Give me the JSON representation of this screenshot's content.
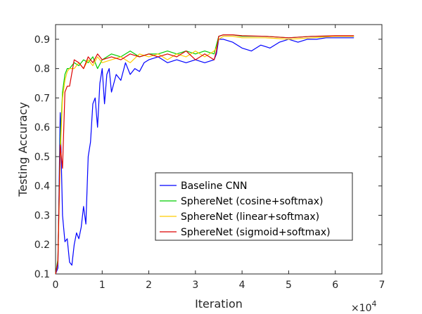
{
  "chart_data": {
    "type": "line",
    "title": "",
    "xlabel": "Iteration",
    "ylabel": "Testing  Accuracy",
    "x_multiplier_label": "×10",
    "x_multiplier_exponent": "4",
    "xlim": [
      0,
      7
    ],
    "ylim": [
      0.1,
      0.95
    ],
    "xticks": [
      0,
      1,
      2,
      3,
      4,
      5,
      6,
      7
    ],
    "yticks": [
      0.1,
      0.2,
      0.3,
      0.4,
      0.5,
      0.6,
      0.7,
      0.8,
      0.9
    ],
    "xtick_labels": [
      "0",
      "1",
      "2",
      "3",
      "4",
      "5",
      "6",
      "7"
    ],
    "ytick_labels": [
      "0.1",
      "0.2",
      "0.3",
      "0.4",
      "0.5",
      "0.6",
      "0.7",
      "0.8",
      "0.9"
    ],
    "grid": false,
    "legend_position": "center-right",
    "series": [
      {
        "name": "Baseline CNN",
        "color": "#0000ff",
        "x": [
          0,
          0.05,
          0.1,
          0.15,
          0.2,
          0.25,
          0.3,
          0.35,
          0.4,
          0.45,
          0.5,
          0.55,
          0.6,
          0.65,
          0.7,
          0.75,
          0.8,
          0.85,
          0.9,
          0.95,
          1.0,
          1.05,
          1.1,
          1.15,
          1.2,
          1.3,
          1.4,
          1.5,
          1.6,
          1.7,
          1.8,
          1.9,
          2.0,
          2.2,
          2.4,
          2.6,
          2.8,
          3.0,
          3.2,
          3.4,
          3.45,
          3.5,
          3.6,
          3.8,
          4.0,
          4.2,
          4.4,
          4.6,
          4.8,
          5.0,
          5.2,
          5.4,
          5.6,
          5.8,
          6.0,
          6.2,
          6.4
        ],
        "y": [
          0.1,
          0.12,
          0.65,
          0.3,
          0.21,
          0.22,
          0.14,
          0.13,
          0.2,
          0.24,
          0.22,
          0.26,
          0.33,
          0.27,
          0.5,
          0.55,
          0.68,
          0.7,
          0.6,
          0.75,
          0.8,
          0.68,
          0.78,
          0.8,
          0.72,
          0.78,
          0.76,
          0.82,
          0.78,
          0.8,
          0.79,
          0.82,
          0.83,
          0.84,
          0.82,
          0.83,
          0.82,
          0.83,
          0.82,
          0.83,
          0.85,
          0.9,
          0.9,
          0.89,
          0.87,
          0.86,
          0.88,
          0.87,
          0.89,
          0.9,
          0.89,
          0.9,
          0.9,
          0.905,
          0.905,
          0.905,
          0.905
        ]
      },
      {
        "name": "SphereNet (cosine+softmax)",
        "color": "#00cc00",
        "x": [
          0,
          0.05,
          0.1,
          0.15,
          0.2,
          0.25,
          0.3,
          0.4,
          0.5,
          0.6,
          0.7,
          0.8,
          0.9,
          1.0,
          1.2,
          1.4,
          1.6,
          1.8,
          2.0,
          2.2,
          2.4,
          2.6,
          2.8,
          3.0,
          3.2,
          3.4,
          3.45,
          3.5,
          3.6,
          3.8,
          4.0,
          4.5,
          5.0,
          5.5,
          6.0,
          6.4
        ],
        "y": [
          0.1,
          0.15,
          0.55,
          0.72,
          0.78,
          0.8,
          0.8,
          0.82,
          0.81,
          0.83,
          0.82,
          0.84,
          0.8,
          0.83,
          0.85,
          0.84,
          0.86,
          0.84,
          0.85,
          0.85,
          0.86,
          0.85,
          0.86,
          0.85,
          0.86,
          0.85,
          0.88,
          0.91,
          0.915,
          0.915,
          0.91,
          0.91,
          0.905,
          0.91,
          0.91,
          0.91
        ]
      },
      {
        "name": "SphereNet (linear+softmax)",
        "color": "#ffcc00",
        "x": [
          0,
          0.05,
          0.1,
          0.15,
          0.2,
          0.25,
          0.3,
          0.4,
          0.5,
          0.6,
          0.7,
          0.8,
          0.9,
          1.0,
          1.2,
          1.4,
          1.6,
          1.8,
          2.0,
          2.2,
          2.4,
          2.6,
          2.8,
          3.0,
          3.2,
          3.4,
          3.45,
          3.5,
          3.6,
          3.8,
          4.0,
          4.5,
          5.0,
          5.5,
          6.0,
          6.4
        ],
        "y": [
          0.1,
          0.14,
          0.5,
          0.7,
          0.76,
          0.79,
          0.8,
          0.8,
          0.82,
          0.8,
          0.83,
          0.81,
          0.84,
          0.82,
          0.83,
          0.84,
          0.82,
          0.85,
          0.84,
          0.85,
          0.83,
          0.85,
          0.84,
          0.86,
          0.84,
          0.86,
          0.87,
          0.9,
          0.91,
          0.91,
          0.905,
          0.905,
          0.9,
          0.905,
          0.91,
          0.91
        ]
      },
      {
        "name": "SphereNet (sigmoid+softmax)",
        "color": "#dd0000",
        "x": [
          0,
          0.05,
          0.1,
          0.15,
          0.2,
          0.25,
          0.3,
          0.4,
          0.5,
          0.6,
          0.7,
          0.8,
          0.9,
          1.0,
          1.2,
          1.4,
          1.6,
          1.8,
          2.0,
          2.2,
          2.4,
          2.6,
          2.8,
          3.0,
          3.2,
          3.4,
          3.45,
          3.5,
          3.6,
          3.8,
          4.0,
          4.5,
          5.0,
          5.5,
          6.0,
          6.4
        ],
        "y": [
          0.1,
          0.14,
          0.54,
          0.46,
          0.72,
          0.74,
          0.74,
          0.83,
          0.82,
          0.8,
          0.84,
          0.82,
          0.85,
          0.83,
          0.84,
          0.83,
          0.85,
          0.84,
          0.85,
          0.84,
          0.85,
          0.84,
          0.86,
          0.83,
          0.85,
          0.83,
          0.86,
          0.91,
          0.915,
          0.915,
          0.912,
          0.91,
          0.905,
          0.91,
          0.912,
          0.912
        ]
      }
    ]
  }
}
